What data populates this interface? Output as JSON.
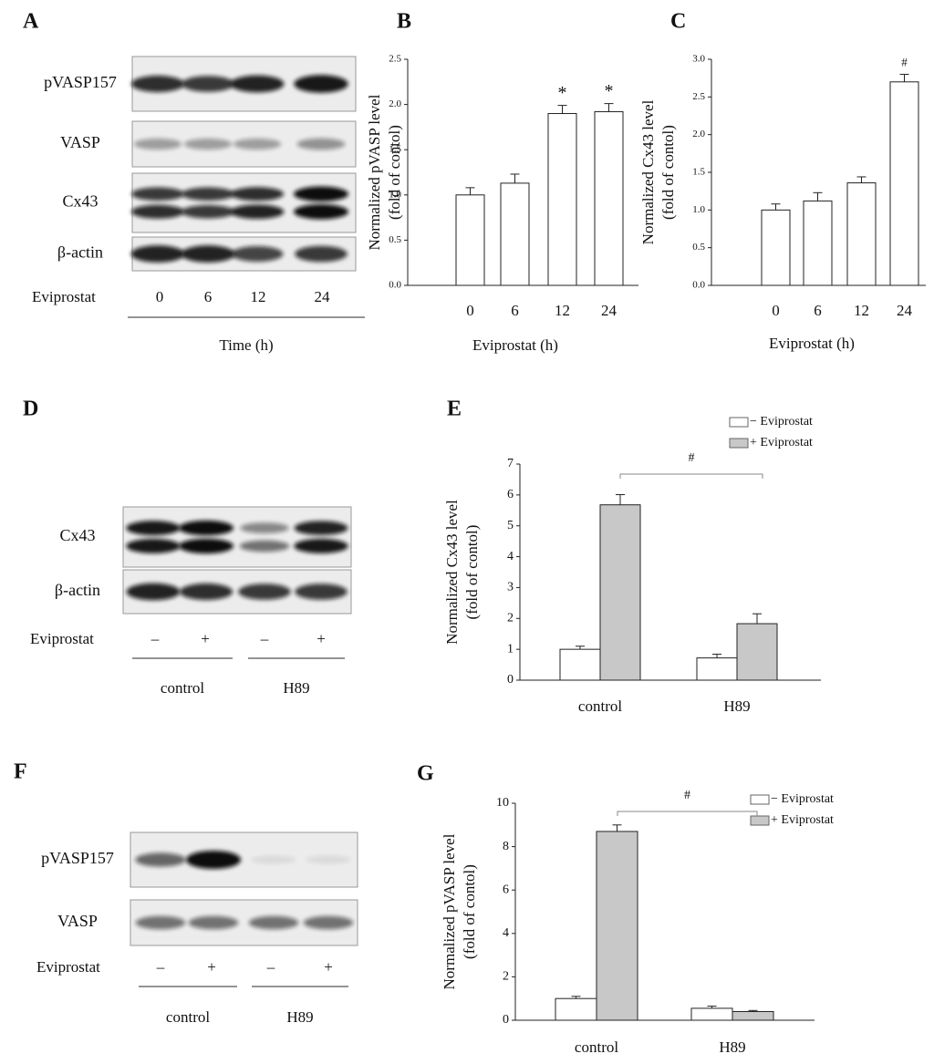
{
  "blots": [
    {
      "panel": "A",
      "rows": [
        "pVASP157",
        "VASP",
        "Cx43",
        "β-actin"
      ],
      "treatment_label": "Eviprostat",
      "lanes": [
        "0",
        "6",
        "12",
        "24"
      ],
      "xlabel": "Time  (h)"
    },
    {
      "panel": "D",
      "rows": [
        "Cx43",
        "β-actin"
      ],
      "treatment_label": "Eviprostat",
      "lanes": [
        "–",
        "+",
        "–",
        "+"
      ],
      "groups": [
        "control",
        "H89"
      ]
    },
    {
      "panel": "F",
      "rows": [
        "pVASP157",
        "VASP"
      ],
      "treatment_label": "Eviprostat",
      "lanes": [
        "–",
        "+",
        "–",
        "+"
      ],
      "groups": [
        "control",
        "H89"
      ]
    }
  ],
  "chart_data": [
    {
      "type": "bar",
      "panel": "B",
      "ylabel": [
        "Normalized pVASP level",
        "(fold of contol)"
      ],
      "xlabel": "Eviprostat  (h)",
      "categories": [
        "0",
        "6",
        "12",
        "24"
      ],
      "values": [
        1.0,
        1.13,
        1.9,
        1.92
      ],
      "errors": [
        0.08,
        0.1,
        0.09,
        0.09
      ],
      "annotations": [
        null,
        null,
        "*",
        "*"
      ],
      "color": "#ffffff",
      "ylim": [
        0,
        2.5
      ],
      "yticks": [
        {
          "value": 0,
          "label": "0.0"
        },
        0.5,
        {
          "value": 1,
          "label": "1.0"
        },
        1.5,
        {
          "value": 2,
          "label": "2.0"
        },
        2.5
      ]
    },
    {
      "type": "bar",
      "panel": "C",
      "ylabel": [
        "Normalized Cx43 level",
        "(fold of contol)"
      ],
      "xlabel": "Eviprostat  (h)",
      "categories": [
        "0",
        "6",
        "12",
        "24"
      ],
      "values": [
        1.0,
        1.12,
        1.36,
        2.7
      ],
      "errors": [
        0.08,
        0.11,
        0.08,
        0.1
      ],
      "annotations": [
        null,
        null,
        null,
        "#"
      ],
      "color": "#ffffff",
      "ylim": [
        0,
        3
      ],
      "yticks": [
        {
          "value": 0,
          "label": "0.0"
        },
        0.5,
        {
          "value": 1,
          "label": "1.0"
        },
        1.5,
        {
          "value": 2,
          "label": "2.0"
        },
        2.5,
        {
          "value": 3,
          "label": "3.0"
        }
      ]
    },
    {
      "type": "grouped_bar",
      "panel": "E",
      "ylabel": [
        "Normalized Cx43 level",
        "(fold of contol)"
      ],
      "categories": [
        "control",
        "H89"
      ],
      "series": [
        {
          "name": "− Eviprostat",
          "color": "#ffffff",
          "values": [
            1.0,
            0.72
          ],
          "errors": [
            0.1,
            0.12
          ]
        },
        {
          "name": "+ Eviprostat",
          "color": "#c8c8c8",
          "values": [
            5.68,
            1.83
          ],
          "errors": [
            0.33,
            0.32
          ]
        }
      ],
      "bracket_label": "#",
      "ylim": [
        0,
        7
      ],
      "yticks": [
        0,
        1,
        2,
        3,
        4,
        5,
        6,
        7
      ]
    },
    {
      "type": "grouped_bar",
      "panel": "G",
      "ylabel": [
        "Normalized pVASP level",
        "(fold of contol)"
      ],
      "categories": [
        "control",
        "H89"
      ],
      "series": [
        {
          "name": "− Eviprostat",
          "color": "#ffffff",
          "values": [
            1.0,
            0.55
          ],
          "errors": [
            0.1,
            0.1
          ]
        },
        {
          "name": "+ Eviprostat",
          "color": "#c8c8c8",
          "values": [
            8.7,
            0.4
          ],
          "errors": [
            0.3,
            0.05
          ]
        }
      ],
      "bracket_label": "#",
      "ylim": [
        0,
        10
      ],
      "yticks": [
        0,
        2,
        4,
        6,
        8,
        10
      ]
    }
  ]
}
